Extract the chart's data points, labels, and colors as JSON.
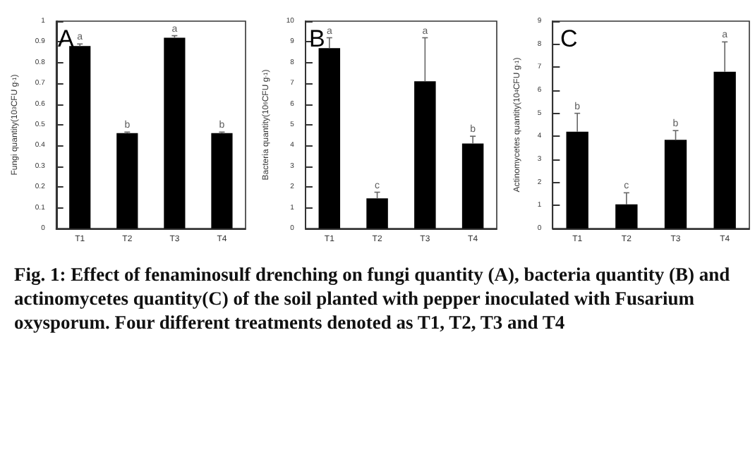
{
  "chart_data": [
    {
      "type": "bar",
      "title": "A",
      "categories": [
        "T1",
        "T2",
        "T3",
        "T4"
      ],
      "ylabel": "Fungi quantity(10$^{3}$CFU g$^{-1}$)",
      "color": "#000000",
      "values": [
        0.88,
        0.46,
        0.92,
        0.46
      ],
      "errors": [
        0.01,
        0.005,
        0.01,
        0.005
      ],
      "ylim": [
        0,
        1
      ],
      "yticks": [
        0,
        0.1,
        0.2,
        0.3,
        0.4,
        0.5,
        0.6,
        0.7,
        0.8,
        0.9,
        1
      ],
      "annotations": [
        {
          "text": "a",
          "x": "T1",
          "y": 0.89
        },
        {
          "text": "b",
          "x": "T2",
          "y": 0.465
        },
        {
          "text": "a",
          "x": "T3",
          "y": 0.93
        },
        {
          "text": "b",
          "x": "T4",
          "y": 0.465
        },
        "Fig. 1: Effect of fenaminosulf drenching on fungi quantity (A), bacteria quantity (B) and actinomycetes quantity(C) of the soil planted with pepper inoculated with Fusarium oxysporum. Four different treatments denoted as T1, T2, T3 and T4"
      ]
    },
    {
      "type": "bar",
      "title": "B",
      "categories": [
        "T1",
        "T2",
        "T3",
        "T4"
      ],
      "ylabel": "Bacteria quantity(10$^{6}$CFU g$^{-1}$)",
      "color": "#000000",
      "values": [
        8.7,
        1.45,
        7.1,
        4.1
      ],
      "errors": [
        0.5,
        0.3,
        2.1,
        0.35
      ],
      "ylim": [
        0,
        10
      ],
      "yticks": [
        0,
        1,
        2,
        3,
        4,
        5,
        6,
        7,
        8,
        9,
        10
      ],
      "annotations": [
        {
          "text": "a",
          "x": "T1",
          "y": 9.2
        },
        {
          "text": "c",
          "x": "T2",
          "y": 1.75
        },
        {
          "text": "a",
          "x": "T3",
          "y": 9.2
        },
        {
          "text": "b",
          "x": "T4",
          "y": 4.45
        }
      ]
    },
    {
      "type": "bar",
      "title": "C",
      "categories": [
        "T1",
        "T2",
        "T3",
        "T4"
      ],
      "ylabel": "Actinomycetes quantity(10$^{4}$CFU g$^{-1}$)",
      "color": "#000000",
      "values": [
        4.2,
        1.05,
        3.85,
        6.8
      ],
      "errors": [
        0.8,
        0.5,
        0.4,
        1.3
      ],
      "ylim": [
        0,
        9
      ],
      "yticks": [
        0,
        1,
        2,
        3,
        4,
        5,
        6,
        7,
        8,
        9
      ],
      "annotations": [
        {
          "text": "b",
          "x": "T1",
          "y": 5.0
        },
        {
          "text": "c",
          "x": "T2",
          "y": 1.55
        },
        {
          "text": "b",
          "x": "T3",
          "y": 4.25
        },
        {
          "text": "a",
          "x": "T4",
          "y": 8.1
        }
      ]
    }
  ]
}
